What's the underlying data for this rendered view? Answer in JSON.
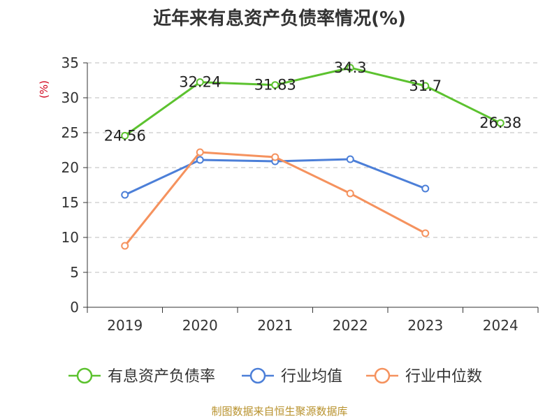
{
  "title": "近年来有息资产负债率情况(%)",
  "source": "制图数据来自恒生聚源数据库",
  "chart_data": {
    "type": "line",
    "title": "近年来有息资产负债率情况(%)",
    "ylabel": "(%)",
    "xlabel": "",
    "categories": [
      "2019",
      "2020",
      "2021",
      "2022",
      "2023",
      "2024"
    ],
    "ylim": [
      0,
      35
    ],
    "yticks": [
      "0",
      "5",
      "10",
      "15",
      "20",
      "25",
      "30",
      "35"
    ],
    "grid": "horizontal dashed",
    "legend_position": "bottom",
    "series": [
      {
        "name": "有息资产负债率",
        "color": "#5cc22f",
        "values": [
          24.56,
          32.24,
          31.83,
          34.3,
          31.7,
          26.38
        ],
        "labels": [
          "24.56",
          "32.24",
          "31.83",
          "34.3",
          "31.7",
          "26.38"
        ]
      },
      {
        "name": "行业均值",
        "color": "#4c7fd8",
        "values": [
          16.1,
          21.1,
          20.9,
          21.2,
          17.0,
          null
        ]
      },
      {
        "name": "行业中位数",
        "color": "#f5925e",
        "values": [
          8.8,
          22.2,
          21.5,
          16.3,
          10.6,
          null
        ]
      }
    ]
  }
}
